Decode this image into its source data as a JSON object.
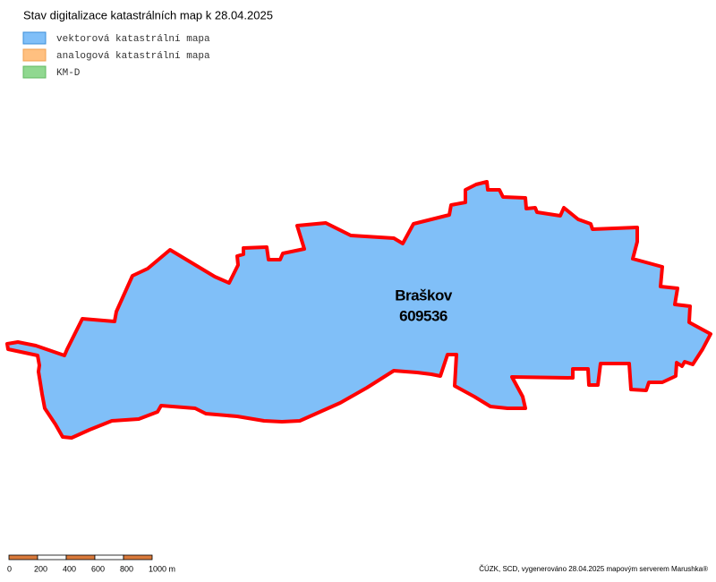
{
  "header": {
    "title": "Stav digitalizace katastrálních map k 28.04.2025"
  },
  "legend": [
    {
      "label": "vektorová katastrální mapa",
      "color": "#80bff8",
      "border": "#3b8fd9"
    },
    {
      "label": "analogová katastrální mapa",
      "color": "#ffc080",
      "border": "#f0a050"
    },
    {
      "label": "KM-D",
      "color": "#90d890",
      "border": "#60b860"
    }
  ],
  "area": {
    "name": "Braškov",
    "code": "609536",
    "fill": "#80bff8",
    "outline": "#ff0000"
  },
  "scale_bar": {
    "labels": [
      "0",
      "200",
      "400",
      "600",
      "800",
      "1000 m"
    ],
    "colors": [
      "#d9793a",
      "#ffffff"
    ]
  },
  "footer": {
    "credit": "ČÚZK, SCD, vygenerováno 28.04.2025 mapovým serverem Marushka®"
  }
}
